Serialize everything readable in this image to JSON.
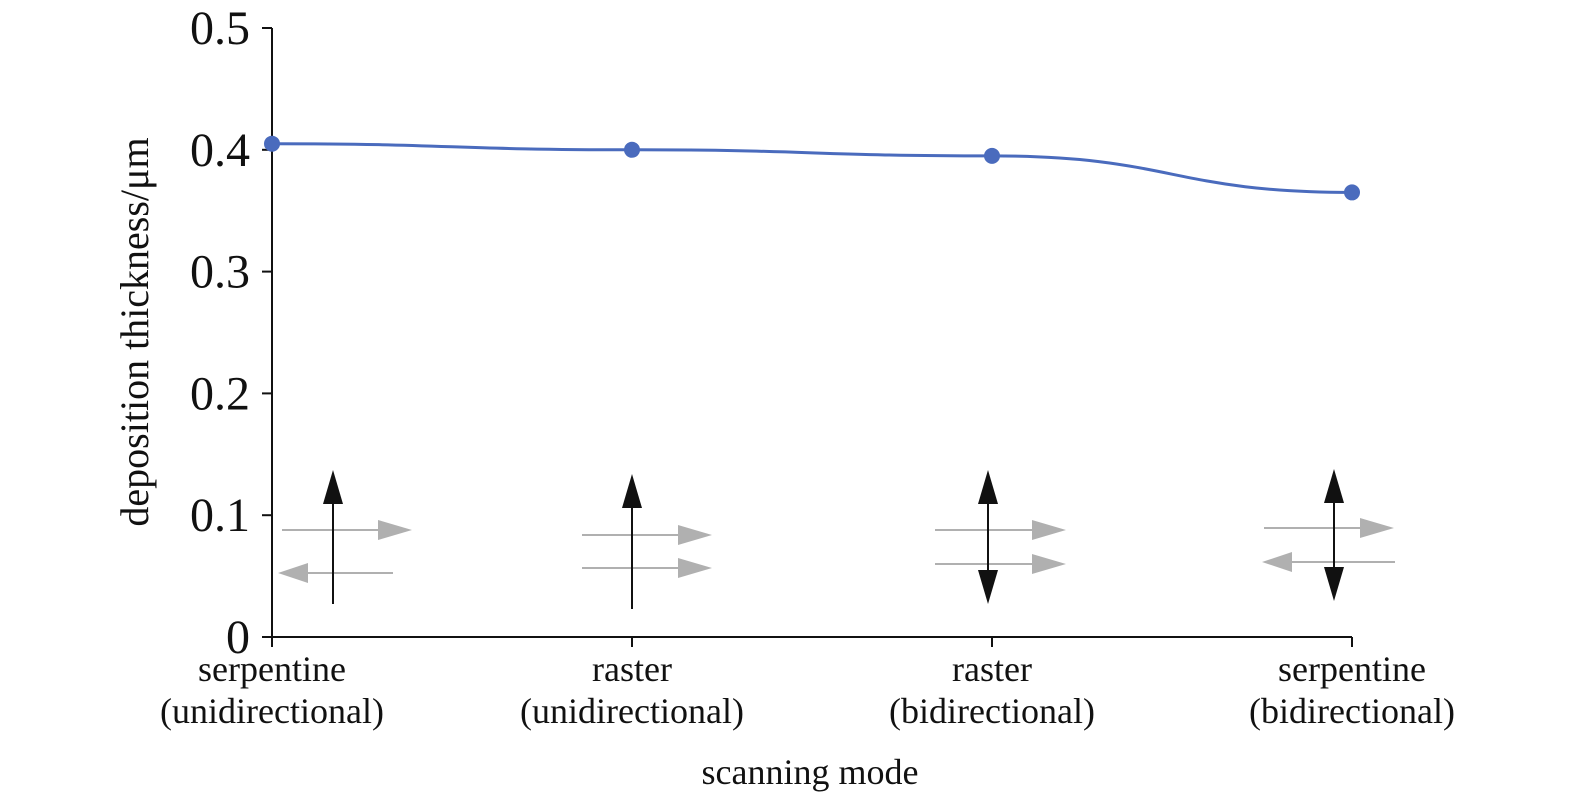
{
  "chart_data": {
    "type": "line",
    "title": "",
    "xlabel": "scanning mode",
    "ylabel": "deposition thickness/μm",
    "ylim": [
      0,
      0.5
    ],
    "yticks": [
      "0",
      "0.1",
      "0.2",
      "0.3",
      "0.4",
      "0.5"
    ],
    "grid": false,
    "categories": [
      [
        "serpentine",
        "(unidirectional)"
      ],
      [
        "raster",
        "(unidirectional)"
      ],
      [
        "raster",
        "(bidirectional)"
      ],
      [
        "serpentine",
        "(bidirectional)"
      ]
    ],
    "series": [
      {
        "values": [
          0.405,
          0.4,
          0.395,
          0.365
        ],
        "color": "#4a6bbd"
      }
    ],
    "scan_icons": [
      {
        "mode": "serpentine-unidirectional",
        "vertical": "up",
        "horizontal": [
          "right",
          "left"
        ]
      },
      {
        "mode": "raster-unidirectional",
        "vertical": "up",
        "horizontal": [
          "right",
          "right"
        ]
      },
      {
        "mode": "raster-bidirectional",
        "vertical": "both",
        "horizontal": [
          "right",
          "right"
        ]
      },
      {
        "mode": "serpentine-bidirectional",
        "vertical": "both",
        "horizontal": [
          "right",
          "left"
        ]
      }
    ]
  }
}
